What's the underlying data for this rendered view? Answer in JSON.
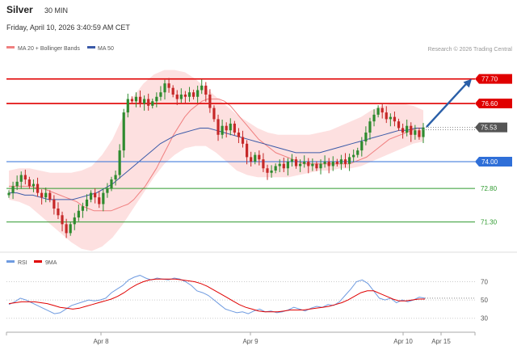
{
  "header": {
    "symbol": "Silver",
    "timeframe": "30 MIN",
    "datetime": "Friday, April 10, 2026 3:40:59 AM CET",
    "watermark": "Research © 2026 Trading Central"
  },
  "colors": {
    "candle_up": "#2e8b2e",
    "candle_down": "#c62828",
    "band_fill": "#fde0e0",
    "ma20": "#f08080",
    "ma50": "#3b5aa8",
    "resistance": "#e00000",
    "support_blue": "#2f6fd8",
    "support_green": "#2e9a2e",
    "arrow": "#2a5fa8",
    "rsi": "#6f9be0",
    "rsi_ma": "#e00000",
    "last_price_bg": "#555555"
  },
  "chart_data": [
    {
      "type": "candlestick",
      "legend": [
        {
          "name": "MA 20 + Bollinger Bands",
          "color": "#f08080"
        },
        {
          "name": "MA 50",
          "color": "#3b5aa8"
        }
      ],
      "x_ticks": [
        "Apr 8",
        "Apr 9",
        "Apr 10",
        "Apr 15"
      ],
      "y_range": [
        70.2,
        78.7
      ],
      "last_price": 75.53,
      "levels": [
        {
          "value": 77.7,
          "label": "77.70",
          "color": "#e00000",
          "style": "solid",
          "badge": true
        },
        {
          "value": 76.6,
          "label": "76.60",
          "color": "#e00000",
          "style": "solid",
          "badge": true
        },
        {
          "value": 74.0,
          "label": "74.00",
          "color": "#2f6fd8",
          "style": "solid",
          "badge": true
        },
        {
          "value": 72.8,
          "label": "72.80",
          "color": "#2e9a2e",
          "style": "solid",
          "badge": false
        },
        {
          "value": 71.3,
          "label": "71.30",
          "color": "#2e9a2e",
          "style": "solid",
          "badge": false
        }
      ],
      "arrow": {
        "from_price": 75.55,
        "to_price": 77.7
      },
      "closes": [
        72.6,
        72.9,
        73.1,
        73.4,
        73.2,
        72.9,
        73.0,
        72.6,
        72.4,
        72.6,
        72.3,
        71.9,
        71.6,
        71.2,
        70.8,
        71.2,
        71.5,
        71.8,
        72.0,
        72.3,
        72.6,
        72.4,
        72.1,
        72.6,
        72.8,
        73.2,
        73.4,
        74.5,
        76.2,
        76.8,
        76.7,
        76.9,
        76.6,
        76.8,
        76.5,
        76.7,
        76.9,
        77.1,
        77.5,
        77.3,
        77.0,
        76.8,
        77.0,
        76.9,
        77.1,
        76.9,
        77.2,
        77.4,
        77.0,
        76.4,
        75.9,
        75.2,
        75.6,
        75.4,
        75.7,
        75.3,
        75.1,
        74.8,
        74.2,
        74.0,
        74.3,
        74.1,
        73.7,
        73.5,
        73.6,
        73.8,
        73.9,
        73.7,
        74.0,
        74.1,
        73.8,
        73.9,
        74.0,
        73.8,
        73.9,
        73.7,
        73.9,
        74.0,
        73.8,
        74.0,
        73.9,
        74.1,
        73.9,
        74.2,
        74.3,
        74.5,
        74.9,
        75.3,
        75.8,
        76.1,
        76.4,
        76.2,
        75.9,
        76.0,
        75.8,
        75.5,
        75.3,
        75.6,
        75.2,
        75.4,
        75.1,
        75.53
      ],
      "ma20": [
        72.9,
        72.9,
        72.9,
        72.9,
        72.9,
        72.8,
        72.8,
        72.7,
        72.6,
        72.5,
        72.4,
        72.3,
        72.2,
        72.0,
        71.9,
        71.8,
        71.8,
        71.8,
        71.8,
        71.9,
        72.0,
        72.1,
        72.3,
        72.6,
        72.9,
        73.3,
        73.7,
        74.2,
        74.7,
        75.2,
        75.6,
        76.0,
        76.3,
        76.5,
        76.7,
        76.8,
        76.8,
        76.8,
        76.7,
        76.5,
        76.2,
        75.9,
        75.6,
        75.3,
        75.0,
        74.8,
        74.6,
        74.4,
        74.3,
        74.2,
        74.1,
        74.0,
        73.9,
        73.9,
        73.9,
        73.9,
        73.9,
        73.9,
        73.9,
        73.9,
        73.9,
        74.0,
        74.1,
        74.2,
        74.4,
        74.6,
        74.8,
        75.0,
        75.1,
        75.2,
        75.3,
        75.4,
        75.5,
        75.5
      ],
      "ma50": [
        72.6,
        72.6,
        72.5,
        72.5,
        72.4,
        72.3,
        72.3,
        72.3,
        72.3,
        72.4,
        72.5,
        72.6,
        72.8,
        73.0,
        73.3,
        73.6,
        73.9,
        74.2,
        74.5,
        74.8,
        75.0,
        75.2,
        75.3,
        75.4,
        75.5,
        75.5,
        75.4,
        75.3,
        75.2,
        75.1,
        75.0,
        74.9,
        74.8,
        74.7,
        74.6,
        74.5,
        74.4,
        74.4,
        74.4,
        74.4,
        74.5,
        74.6,
        74.7,
        74.8,
        74.9,
        75.0,
        75.1,
        75.2,
        75.3,
        75.4,
        75.4,
        75.5,
        75.5
      ],
      "bb_upper": [
        73.6,
        73.7,
        73.7,
        73.6,
        73.5,
        73.5,
        73.5,
        73.6,
        73.8,
        74.3,
        75.0,
        76.0,
        76.9,
        77.5,
        77.9,
        78.1,
        78.1,
        78.0,
        77.7,
        77.3,
        76.9,
        76.5,
        76.1,
        75.8,
        75.5,
        75.3,
        75.2,
        75.2,
        75.2,
        75.2,
        75.3,
        75.4,
        75.6,
        75.8,
        76.0,
        76.3,
        76.5,
        76.6,
        76.6,
        76.5,
        76.3
      ],
      "bb_lower": [
        72.3,
        72.2,
        72.0,
        71.6,
        71.2,
        70.8,
        70.4,
        70.1,
        70.0,
        70.2,
        70.6,
        71.2,
        71.9,
        72.6,
        73.3,
        73.9,
        74.3,
        74.6,
        74.7,
        74.7,
        74.4,
        74.0,
        73.6,
        73.4,
        73.3,
        73.3,
        73.3,
        73.3,
        73.4,
        73.5,
        73.6,
        73.6,
        73.7,
        73.7,
        73.8,
        74.0,
        74.2,
        74.4,
        74.6,
        74.8,
        74.9
      ]
    },
    {
      "type": "line",
      "legend": [
        {
          "name": "RSI",
          "color": "#6f9be0"
        },
        {
          "name": "9MA",
          "color": "#e00000"
        }
      ],
      "y_ticks": [
        70,
        50,
        30
      ],
      "y_range": [
        20,
        82
      ],
      "rsi": [
        45,
        48,
        52,
        50,
        47,
        44,
        41,
        38,
        35,
        36,
        40,
        44,
        46,
        48,
        50,
        49,
        50,
        52,
        58,
        62,
        66,
        72,
        75,
        77,
        74,
        72,
        74,
        73,
        72,
        74,
        73,
        70,
        66,
        60,
        58,
        55,
        50,
        45,
        40,
        38,
        36,
        37,
        35,
        38,
        40,
        37,
        38,
        36,
        37,
        39,
        42,
        40,
        38,
        41,
        43,
        42,
        45,
        44,
        48,
        55,
        62,
        70,
        72,
        68,
        60,
        52,
        50,
        52,
        47,
        50,
        48,
        50,
        53,
        52
      ],
      "rsi_ma": [
        46,
        47,
        48,
        48,
        48,
        47,
        46,
        44,
        42,
        41,
        40,
        41,
        43,
        45,
        47,
        49,
        51,
        54,
        58,
        63,
        67,
        70,
        72,
        73,
        73,
        73,
        73,
        72,
        71,
        70,
        68,
        65,
        61,
        57,
        53,
        49,
        45,
        42,
        40,
        38,
        37,
        37,
        37,
        38,
        39,
        39,
        39,
        40,
        41,
        42,
        43,
        45,
        47,
        50,
        54,
        58,
        60,
        60,
        57,
        54,
        51,
        49,
        49,
        50,
        51,
        51
      ]
    }
  ]
}
